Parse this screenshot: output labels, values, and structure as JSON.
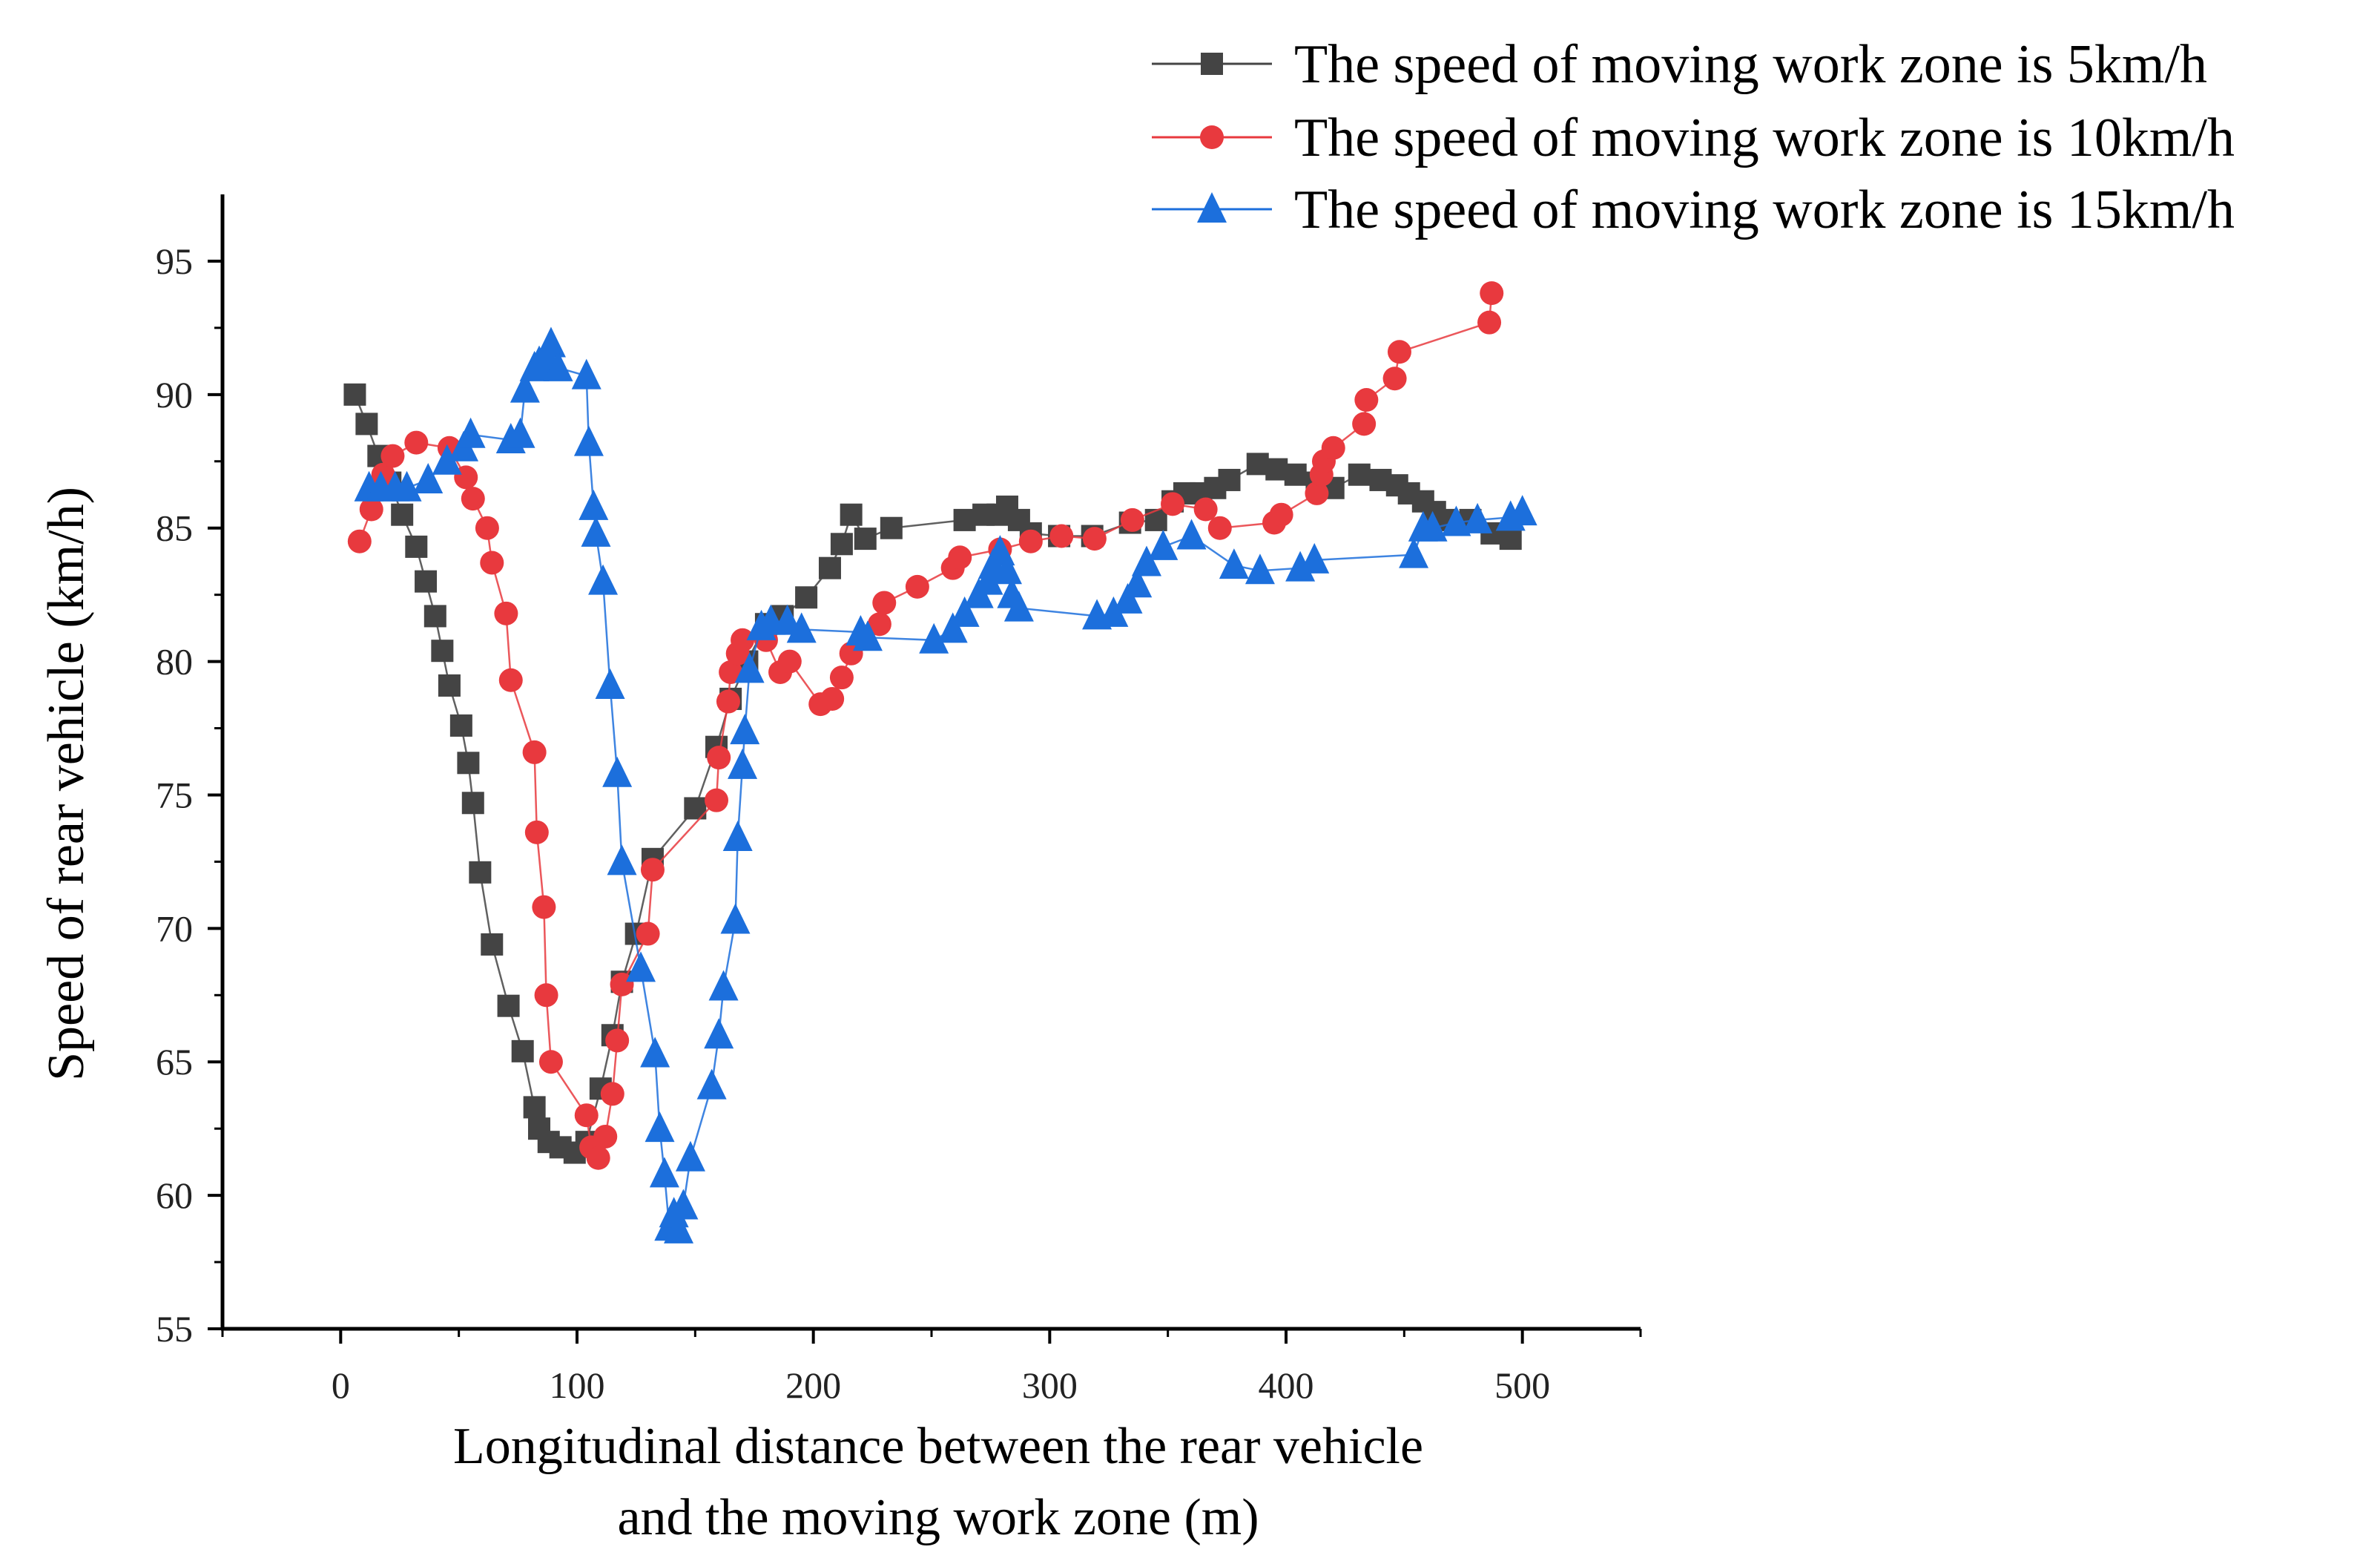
{
  "chart_data": {
    "type": "line",
    "title": "",
    "xlabel": [
      "Longitudinal distance between the rear vehicle",
      "and the moving work zone (m)"
    ],
    "ylabel": "Speed of rear vehicle (km/h)",
    "xlim": [
      -50,
      550
    ],
    "ylim": [
      55,
      97.5
    ],
    "xticks": [
      0,
      100,
      200,
      300,
      400,
      500
    ],
    "yticks": [
      55,
      60,
      65,
      70,
      75,
      80,
      85,
      90,
      95
    ],
    "grid": false,
    "legend_position": "top-right",
    "series": [
      {
        "name": "The speed of moving work zone is 5km/h",
        "color": "#444444",
        "marker": "square",
        "points": [
          [
            6,
            90.0
          ],
          [
            11,
            88.9
          ],
          [
            16,
            87.7
          ],
          [
            21,
            86.7
          ],
          [
            26,
            85.5
          ],
          [
            32,
            84.3
          ],
          [
            36,
            83.0
          ],
          [
            40,
            81.7
          ],
          [
            43,
            80.4
          ],
          [
            46,
            79.1
          ],
          [
            51,
            77.6
          ],
          [
            54,
            76.2
          ],
          [
            56,
            74.7
          ],
          [
            59,
            72.1
          ],
          [
            64,
            69.4
          ],
          [
            71,
            67.1
          ],
          [
            77,
            65.4
          ],
          [
            82,
            63.3
          ],
          [
            84,
            62.5
          ],
          [
            88,
            62.0
          ],
          [
            93,
            61.8
          ],
          [
            99,
            61.6
          ],
          [
            104,
            62.0
          ],
          [
            110,
            64.0
          ],
          [
            115,
            66.0
          ],
          [
            119,
            68.0
          ],
          [
            125,
            69.8
          ],
          [
            132,
            72.6
          ],
          [
            150,
            74.5
          ],
          [
            159,
            76.8
          ],
          [
            165,
            78.6
          ],
          [
            172,
            80.0
          ],
          [
            180,
            81.4
          ],
          [
            187,
            81.7
          ],
          [
            197,
            82.4
          ],
          [
            207,
            83.5
          ],
          [
            212,
            84.4
          ],
          [
            216,
            85.5
          ],
          [
            222,
            84.6
          ],
          [
            233,
            85.0
          ],
          [
            264,
            85.3
          ],
          [
            272,
            85.5
          ],
          [
            278,
            85.5
          ],
          [
            282,
            85.8
          ],
          [
            287,
            85.3
          ],
          [
            292,
            84.8
          ],
          [
            304,
            84.7
          ],
          [
            318,
            84.7
          ],
          [
            334,
            85.2
          ],
          [
            345,
            85.3
          ],
          [
            352,
            86.0
          ],
          [
            357,
            86.3
          ],
          [
            364,
            86.3
          ],
          [
            370,
            86.5
          ],
          [
            376,
            86.8
          ],
          [
            388,
            87.4
          ],
          [
            396,
            87.2
          ],
          [
            404,
            87.0
          ],
          [
            413,
            86.7
          ],
          [
            420,
            86.5
          ],
          [
            431,
            87.0
          ],
          [
            440,
            86.8
          ],
          [
            447,
            86.6
          ],
          [
            452,
            86.3
          ],
          [
            458,
            86.0
          ],
          [
            463,
            85.6
          ],
          [
            468,
            85.3
          ],
          [
            478,
            85.3
          ],
          [
            487,
            84.8
          ],
          [
            495,
            84.6
          ]
        ]
      },
      {
        "name": "The speed of moving work zone is 10km/h",
        "color": "#e8393e",
        "marker": "circle",
        "points": [
          [
            8,
            84.5
          ],
          [
            13,
            85.7
          ],
          [
            18,
            87.0
          ],
          [
            22,
            87.7
          ],
          [
            32,
            88.2
          ],
          [
            46,
            88.0
          ],
          [
            53,
            86.9
          ],
          [
            56,
            86.1
          ],
          [
            62,
            85.0
          ],
          [
            64,
            83.7
          ],
          [
            70,
            81.8
          ],
          [
            72,
            79.3
          ],
          [
            82,
            76.6
          ],
          [
            83,
            73.6
          ],
          [
            86,
            70.8
          ],
          [
            87,
            67.5
          ],
          [
            89,
            65.0
          ],
          [
            104,
            63.0
          ],
          [
            106,
            61.8
          ],
          [
            109,
            61.4
          ],
          [
            112,
            62.2
          ],
          [
            115,
            63.8
          ],
          [
            117,
            65.8
          ],
          [
            119,
            67.9
          ],
          [
            130,
            69.8
          ],
          [
            132,
            72.2
          ],
          [
            159,
            74.8
          ],
          [
            160,
            76.4
          ],
          [
            164,
            78.5
          ],
          [
            165,
            79.6
          ],
          [
            168,
            80.3
          ],
          [
            170,
            80.8
          ],
          [
            180,
            80.8
          ],
          [
            186,
            79.6
          ],
          [
            190,
            80.0
          ],
          [
            203,
            78.4
          ],
          [
            208,
            78.6
          ],
          [
            212,
            79.4
          ],
          [
            216,
            80.3
          ],
          [
            228,
            81.4
          ],
          [
            230,
            82.2
          ],
          [
            244,
            82.8
          ],
          [
            259,
            83.5
          ],
          [
            262,
            83.9
          ],
          [
            279,
            84.2
          ],
          [
            292,
            84.5
          ],
          [
            305,
            84.7
          ],
          [
            319,
            84.6
          ],
          [
            335,
            85.3
          ],
          [
            352,
            85.9
          ],
          [
            366,
            85.7
          ],
          [
            372,
            85.0
          ],
          [
            395,
            85.2
          ],
          [
            398,
            85.5
          ],
          [
            413,
            86.3
          ],
          [
            415,
            87.0
          ],
          [
            416,
            87.5
          ],
          [
            420,
            88.0
          ],
          [
            433,
            88.9
          ],
          [
            434,
            89.8
          ],
          [
            446,
            90.6
          ],
          [
            448,
            91.6
          ],
          [
            486,
            92.7
          ],
          [
            487,
            93.8
          ]
        ]
      },
      {
        "name": "The speed of moving work zone is 15km/h",
        "color": "#1c6fdc",
        "marker": "triangle",
        "points": [
          [
            12,
            86.5
          ],
          [
            17,
            86.5
          ],
          [
            23,
            86.5
          ],
          [
            28,
            86.5
          ],
          [
            37,
            86.8
          ],
          [
            45,
            87.5
          ],
          [
            52,
            88.0
          ],
          [
            55,
            88.5
          ],
          [
            72,
            88.3
          ],
          [
            76,
            88.5
          ],
          [
            78,
            90.2
          ],
          [
            82,
            91.0
          ],
          [
            84,
            91.2
          ],
          [
            87,
            91.4
          ],
          [
            89,
            91.9
          ],
          [
            92,
            91.0
          ],
          [
            104,
            90.7
          ],
          [
            105,
            88.2
          ],
          [
            107,
            85.8
          ],
          [
            108,
            84.8
          ],
          [
            111,
            83.0
          ],
          [
            114,
            79.1
          ],
          [
            117,
            75.8
          ],
          [
            119,
            72.5
          ],
          [
            127,
            68.5
          ],
          [
            133,
            65.3
          ],
          [
            135,
            62.5
          ],
          [
            137,
            60.8
          ],
          [
            139,
            58.8
          ],
          [
            141,
            59.3
          ],
          [
            143,
            58.7
          ],
          [
            145,
            59.6
          ],
          [
            148,
            61.4
          ],
          [
            157,
            64.1
          ],
          [
            160,
            66.0
          ],
          [
            162,
            67.8
          ],
          [
            167,
            70.3
          ],
          [
            168,
            73.4
          ],
          [
            170,
            76.1
          ],
          [
            171,
            77.4
          ],
          [
            173,
            79.7
          ],
          [
            178,
            81.3
          ],
          [
            182,
            81.5
          ],
          [
            189,
            81.5
          ],
          [
            195,
            81.2
          ],
          [
            220,
            81.1
          ],
          [
            223,
            80.9
          ],
          [
            251,
            80.8
          ],
          [
            259,
            81.2
          ],
          [
            264,
            81.8
          ],
          [
            270,
            82.5
          ],
          [
            274,
            83.0
          ],
          [
            276,
            83.6
          ],
          [
            279,
            84.1
          ],
          [
            282,
            83.4
          ],
          [
            284,
            82.5
          ],
          [
            287,
            82.0
          ],
          [
            320,
            81.7
          ],
          [
            327,
            81.8
          ],
          [
            333,
            82.3
          ],
          [
            337,
            82.9
          ],
          [
            341,
            83.7
          ],
          [
            348,
            84.3
          ],
          [
            360,
            84.7
          ],
          [
            378,
            83.6
          ],
          [
            389,
            83.4
          ],
          [
            406,
            83.5
          ],
          [
            412,
            83.8
          ],
          [
            454,
            84.0
          ],
          [
            458,
            85.0
          ],
          [
            462,
            85.0
          ],
          [
            472,
            85.2
          ],
          [
            481,
            85.3
          ],
          [
            495,
            85.4
          ],
          [
            500,
            85.6
          ]
        ]
      }
    ]
  }
}
